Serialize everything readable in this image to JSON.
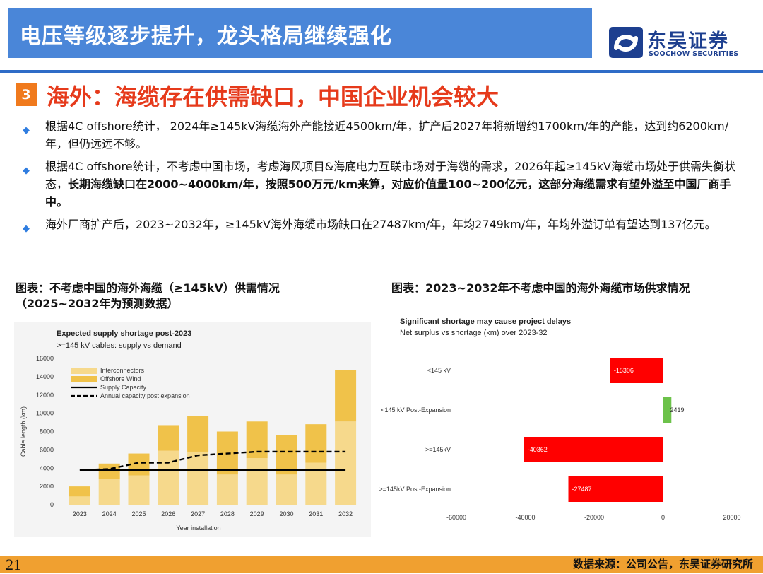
{
  "header": {
    "title": "电压等级逐步提升，龙头格局继续强化",
    "logo_cn": "东吴证券",
    "logo_en": "SOOCHOW SECURITIES"
  },
  "section": {
    "number": "3",
    "title": "海外：海缆存在供需缺口，中国企业机会较大"
  },
  "bullets": [
    {
      "text": "根据4C offshore统计， 2024年≥145kV海缆海外产能接近4500km/年，扩产后2027年将新增约1700km/年的产能，达到约6200km/年，但仍远远不够。"
    },
    {
      "text": "根据4C offshore统计，不考虑中国市场，考虑海风项目&海底电力互联市场对于海缆的需求，2026年起≥145kV海缆市场处于供需失衡状态，",
      "bold": "长期海缆缺口在2000~4000km/年，按照500万元/km来算，对应价值量100~200亿元，这部分海缆需求有望外溢至中国厂商手中。"
    },
    {
      "text": "海外厂商扩产后，2023~2032年，≥145kV海外海缆市场缺口在27487km/年，年均2749km/年，年均外溢订单有望达到137亿元。"
    }
  ],
  "captions": {
    "left": "图表：不考虑中国的海外海缆（≥145kV）供需情况（2025~2032年为预测数据）",
    "right": "图表：2023~2032年不考虑中国的海外海缆市场供求情况"
  },
  "chart_data": [
    {
      "type": "bar",
      "title": "Expected supply shortage post-2023",
      "subtitle": ">=145 kV cables: supply vs demand",
      "xlabel": "Year installation",
      "ylabel": "Cable length (km)",
      "ylim": [
        0,
        16000
      ],
      "yticks": [
        0,
        2000,
        4000,
        6000,
        8000,
        10000,
        12000,
        14000,
        16000
      ],
      "categories": [
        "2023",
        "2024",
        "2025",
        "2026",
        "2027",
        "2028",
        "2029",
        "2030",
        "2031",
        "2032"
      ],
      "series": [
        {
          "name": "Interconnectors",
          "kind": "stacked-bar",
          "color": "#f6d98c",
          "values": [
            900,
            2800,
            3200,
            5900,
            5800,
            3300,
            5100,
            3300,
            4600,
            9100
          ]
        },
        {
          "name": "Offshore Wind",
          "kind": "stacked-bar",
          "color": "#f0c24a",
          "values": [
            1100,
            1700,
            2400,
            2800,
            3900,
            4700,
            4000,
            4300,
            4200,
            5600
          ]
        },
        {
          "name": "Supply Capacity",
          "kind": "line",
          "style": "solid",
          "color": "#000000",
          "values": [
            3800,
            3800,
            3800,
            3800,
            3800,
            3800,
            3800,
            3800,
            3800,
            3800
          ]
        },
        {
          "name": "Annual capacity post expansion",
          "kind": "line",
          "style": "dashed",
          "color": "#000000",
          "values": [
            3800,
            3900,
            4600,
            4600,
            5400,
            5600,
            5800,
            5800,
            5800,
            5800
          ]
        }
      ],
      "legend": "top-left",
      "grid": false
    },
    {
      "type": "bar",
      "orientation": "horizontal",
      "title": "Significant shortage may cause project delays",
      "subtitle": "Net surplus vs shortage (km) over 2023-32",
      "categories": [
        "<145 kV",
        "<145 kV Post-Expansion",
        ">=145kV",
        ">=145kV Post-Expansion"
      ],
      "values": [
        -15306,
        2419,
        -40362,
        -27487
      ],
      "colors": [
        "#ff0000",
        "#6cc24a",
        "#ff0000",
        "#ff0000"
      ],
      "xlim": [
        -60000,
        20000
      ],
      "xticks": [
        -60000,
        -40000,
        -20000,
        0,
        20000
      ],
      "grid": false
    }
  ],
  "footer": {
    "page": "21",
    "source": "数据来源：公司公告，东吴证券研究所"
  }
}
